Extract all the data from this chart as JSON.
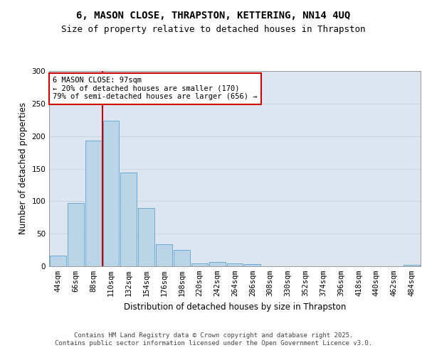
{
  "title_line1": "6, MASON CLOSE, THRAPSTON, KETTERING, NN14 4UQ",
  "title_line2": "Size of property relative to detached houses in Thrapston",
  "xlabel": "Distribution of detached houses by size in Thrapston",
  "ylabel": "Number of detached properties",
  "categories": [
    "44sqm",
    "66sqm",
    "88sqm",
    "110sqm",
    "132sqm",
    "154sqm",
    "176sqm",
    "198sqm",
    "220sqm",
    "242sqm",
    "264sqm",
    "286sqm",
    "308sqm",
    "330sqm",
    "352sqm",
    "374sqm",
    "396sqm",
    "418sqm",
    "440sqm",
    "462sqm",
    "484sqm"
  ],
  "values": [
    16,
    97,
    193,
    224,
    144,
    89,
    34,
    25,
    4,
    7,
    4,
    3,
    0,
    0,
    0,
    0,
    0,
    0,
    0,
    0,
    2
  ],
  "bar_color": "#bad4e8",
  "bar_edge_color": "#6aaad4",
  "bar_linewidth": 0.7,
  "vline_color": "#cc0000",
  "vline_x": 2.5,
  "annotation_text": "6 MASON CLOSE: 97sqm\n← 20% of detached houses are smaller (170)\n79% of semi-detached houses are larger (656) →",
  "annotation_box_color": "#ffffff",
  "annotation_box_edge": "#cc0000",
  "ylim": [
    0,
    300
  ],
  "yticks": [
    0,
    50,
    100,
    150,
    200,
    250,
    300
  ],
  "grid_color": "#c8d4e0",
  "bg_color": "#dde6f0",
  "footer_text": "Contains HM Land Registry data © Crown copyright and database right 2025.\nContains public sector information licensed under the Open Government Licence v3.0.",
  "title_fontsize": 10,
  "subtitle_fontsize": 9,
  "axis_label_fontsize": 8.5,
  "tick_fontsize": 7.5,
  "annotation_fontsize": 7.5,
  "footer_fontsize": 6.5
}
